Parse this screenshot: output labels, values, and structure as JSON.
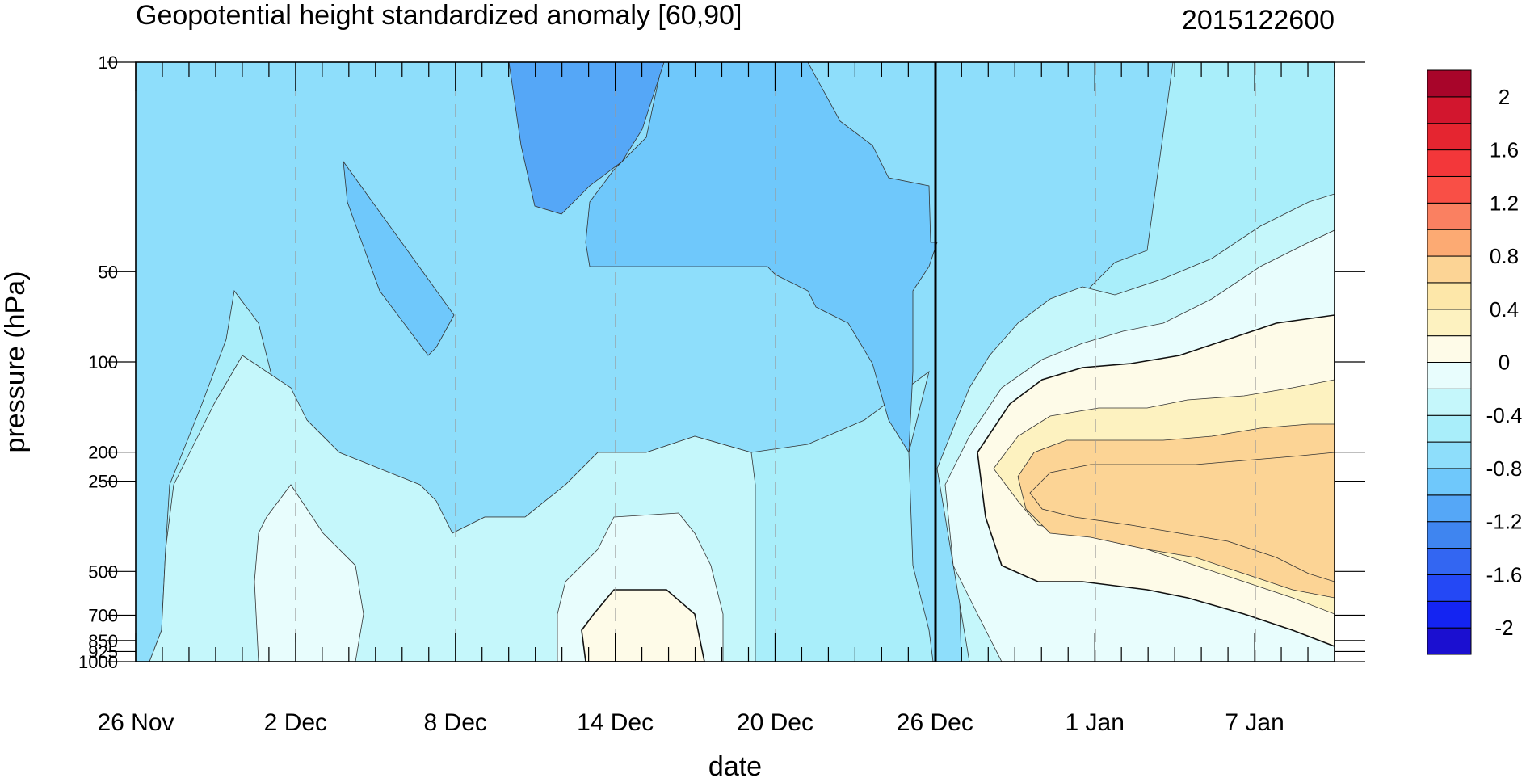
{
  "chart_data": {
    "type": "heatmap",
    "subtype": "filled-contour",
    "title": "Geopotential height standardized anomaly [60,90]",
    "timestamp": "2015122600",
    "xlabel": "date",
    "ylabel": "pressure (hPa)",
    "x_ticks": [
      {
        "label": "26 Nov",
        "day": 0
      },
      {
        "label": "2 Dec",
        "day": 6
      },
      {
        "label": "8 Dec",
        "day": 12
      },
      {
        "label": "14 Dec",
        "day": 18
      },
      {
        "label": "20 Dec",
        "day": 24
      },
      {
        "label": "26 Dec",
        "day": 30
      },
      {
        "label": "1 Jan",
        "day": 36
      },
      {
        "label": "7 Jan",
        "day": 42
      }
    ],
    "x_range_days": [
      0,
      45
    ],
    "forecast_start_day": 30,
    "y_ticks": [
      {
        "label": "10",
        "value": 10
      },
      {
        "label": "50",
        "value": 50
      },
      {
        "label": "100",
        "value": 100
      },
      {
        "label": "200",
        "value": 200
      },
      {
        "label": "250",
        "value": 250
      },
      {
        "label": "500",
        "value": 500
      },
      {
        "label": "700",
        "value": 700
      },
      {
        "label": "850",
        "value": 850
      },
      {
        "label": "925",
        "value": 925
      },
      {
        "label": "1000",
        "value": 1000
      }
    ],
    "y_scale": "log-reversed",
    "colorbar": {
      "levels": [
        -2.2,
        -2.0,
        -1.8,
        -1.6,
        -1.4,
        -1.2,
        -1.0,
        -0.8,
        -0.6,
        -0.4,
        -0.2,
        0.0,
        0.2,
        0.4,
        0.6,
        0.8,
        1.0,
        1.2,
        1.4,
        1.6,
        1.8,
        2.0,
        2.2
      ],
      "labels": [
        {
          "text": "2",
          "value": 2.0
        },
        {
          "text": "1.6",
          "value": 1.6
        },
        {
          "text": "1.2",
          "value": 1.2
        },
        {
          "text": "0.8",
          "value": 0.8
        },
        {
          "text": "0.4",
          "value": 0.4
        },
        {
          "text": "0",
          "value": 0.0
        },
        {
          "text": "-0.4",
          "value": -0.4
        },
        {
          "text": "-0.8",
          "value": -0.8
        },
        {
          "text": "-1.2",
          "value": -1.2
        },
        {
          "text": "-1.6",
          "value": -1.6
        },
        {
          "text": "-2",
          "value": -2.0
        }
      ],
      "colors": [
        "#1b0fd0",
        "#1424f2",
        "#2448f5",
        "#3366f2",
        "#3f85f0",
        "#55a7f7",
        "#6fc8fb",
        "#8edefb",
        "#a9eefa",
        "#c5f7fb",
        "#e8fdfd",
        "#fefbe8",
        "#fdf2c0",
        "#fde7a9",
        "#fcd495",
        "#fcaa73",
        "#fa8061",
        "#f94f46",
        "#f3373a",
        "#e52530",
        "#d2162e",
        "#a8052a"
      ]
    },
    "field_samples": {
      "days": [
        0,
        6,
        12,
        18,
        24,
        30,
        36,
        42,
        45
      ],
      "pressure_hPa": [
        10,
        50,
        100,
        200,
        500,
        700,
        1000
      ],
      "values": [
        [
          -0.6,
          -0.6,
          -0.9,
          -1.1,
          -0.7,
          -0.6,
          -0.5,
          -0.3,
          -0.3
        ],
        [
          -0.6,
          -0.6,
          -0.9,
          -0.9,
          -0.9,
          -0.7,
          -0.4,
          -0.1,
          0.0
        ],
        [
          -0.5,
          -0.6,
          -0.9,
          -0.8,
          -0.8,
          -0.6,
          0.0,
          0.2,
          0.3
        ],
        [
          -0.4,
          -0.5,
          -0.6,
          -0.7,
          -0.8,
          -0.5,
          0.5,
          0.8,
          0.8
        ],
        [
          -0.4,
          -0.1,
          -0.4,
          -0.2,
          -0.5,
          -0.5,
          0.5,
          0.7,
          0.9
        ],
        [
          -0.6,
          -0.2,
          -0.4,
          0.1,
          -0.6,
          -0.6,
          0.1,
          0.4,
          0.6
        ],
        [
          -0.6,
          -0.4,
          -0.6,
          0.1,
          -0.6,
          -0.6,
          -0.3,
          0.1,
          0.2
        ]
      ]
    }
  }
}
